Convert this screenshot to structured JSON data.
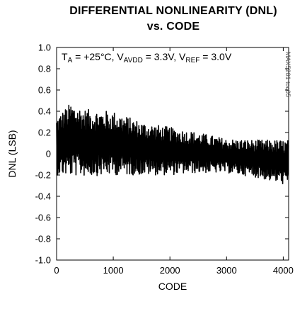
{
  "chart_data": {
    "type": "line",
    "title_line1": "DIFFERENTIAL NONLINEARITY (DNL)",
    "title_line2": "vs. CODE",
    "xlabel": "CODE",
    "ylabel": "DNL (LSB)",
    "xlim": [
      0,
      4095
    ],
    "ylim": [
      -1.0,
      1.0
    ],
    "xticks": [
      "0",
      "1000",
      "2000",
      "3000",
      "4000"
    ],
    "xtick_values": [
      0,
      1000,
      2000,
      3000,
      4000
    ],
    "yticks": [
      "1.0",
      "0.8",
      "0.6",
      "0.4",
      "0.2",
      "0",
      "-0.2",
      "-0.4",
      "-0.6",
      "-0.8",
      "-1.0"
    ],
    "ytick_values": [
      1.0,
      0.8,
      0.6,
      0.4,
      0.2,
      0,
      -0.2,
      -0.4,
      -0.6,
      -0.8,
      -1.0
    ],
    "conditions": {
      "ta": "T",
      "ta_sub": "A",
      "ta_val": " = +25°C, V",
      "avdd_sub": "AVDD",
      "avdd_val": " = 3.3V, V",
      "ref_sub": "REF",
      "ref_val": " = 3.0V"
    },
    "watermark": "MAX5201 toc05",
    "grid": false,
    "series": [
      {
        "color": "#000000",
        "envelope": [
          {
            "code": 0,
            "max": 0.35,
            "min": -0.2
          },
          {
            "code": 250,
            "max": 0.48,
            "min": -0.21
          },
          {
            "code": 500,
            "max": 0.42,
            "min": -0.21
          },
          {
            "code": 1000,
            "max": 0.4,
            "min": -0.2
          },
          {
            "code": 1500,
            "max": 0.3,
            "min": -0.2
          },
          {
            "code": 2000,
            "max": 0.25,
            "min": -0.2
          },
          {
            "code": 2500,
            "max": 0.2,
            "min": -0.18
          },
          {
            "code": 3000,
            "max": 0.14,
            "min": -0.18
          },
          {
            "code": 3500,
            "max": 0.13,
            "min": -0.22
          },
          {
            "code": 4095,
            "max": 0.13,
            "min": -0.3
          }
        ]
      }
    ]
  }
}
